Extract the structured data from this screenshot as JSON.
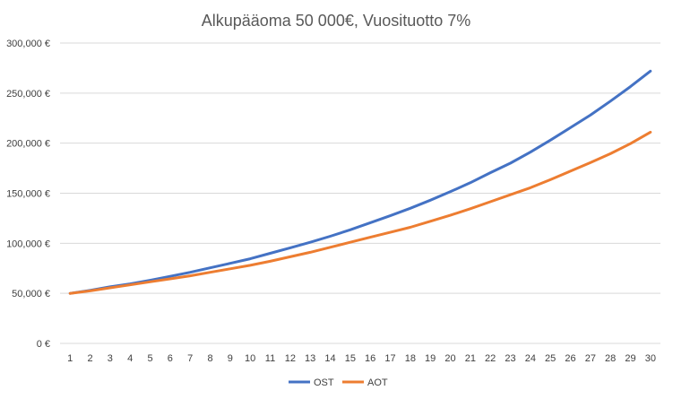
{
  "chart_data": {
    "type": "line",
    "title": "Alkupääoma 50 000€, Vuosituotto 7%",
    "xlabel": "",
    "ylabel": "",
    "ylim": [
      0,
      300000
    ],
    "yticks": [
      0,
      50000,
      100000,
      150000,
      200000,
      250000,
      300000
    ],
    "ytick_labels": [
      "0 €",
      "50,000 €",
      "100,000 €",
      "150,000 €",
      "200,000 €",
      "250,000 €",
      "300,000 €"
    ],
    "x": [
      1,
      2,
      3,
      4,
      5,
      6,
      7,
      8,
      9,
      10,
      11,
      12,
      13,
      14,
      15,
      16,
      17,
      18,
      19,
      20,
      21,
      22,
      23,
      24,
      25,
      26,
      27,
      28,
      29,
      30
    ],
    "grid": true,
    "legend_position": "bottom",
    "series": [
      {
        "name": "OST",
        "color": "#4472C4",
        "values": [
          50000,
          53000,
          56500,
          59500,
          63000,
          67000,
          71000,
          75500,
          80000,
          84500,
          90000,
          95500,
          101000,
          107000,
          113500,
          120500,
          127500,
          135000,
          143000,
          151500,
          160500,
          170500,
          180000,
          191000,
          203000,
          215500,
          228000,
          242000,
          256500,
          272000
        ]
      },
      {
        "name": "AOT",
        "color": "#ED7D31",
        "values": [
          50000,
          52500,
          55500,
          58500,
          61500,
          64500,
          67500,
          71000,
          74500,
          78000,
          82000,
          86500,
          91000,
          96000,
          101000,
          106000,
          111000,
          116000,
          122000,
          128000,
          134500,
          141500,
          148500,
          155500,
          163500,
          172000,
          180500,
          189500,
          199500,
          211000
        ]
      }
    ]
  }
}
